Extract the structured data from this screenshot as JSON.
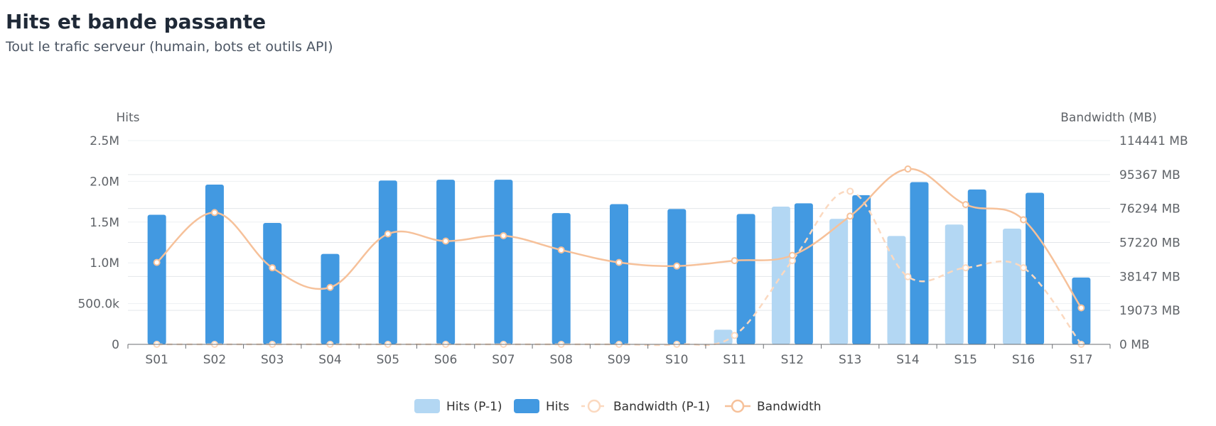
{
  "header": {
    "title": "Hits et bande passante",
    "subtitle": "Tout le trafic serveur (humain, bots et outils API)"
  },
  "colors": {
    "hits_prev": "#b3d7f3",
    "hits": "#4299e1",
    "bandwidth_prev": "#fbd9c0",
    "bandwidth": "#f6c19a",
    "grid": "#e3e6ea",
    "axis": "#6b6e72"
  },
  "chart_data": {
    "type": "bar",
    "categories": [
      "S01",
      "S02",
      "S03",
      "S04",
      "S05",
      "S06",
      "S07",
      "S08",
      "S09",
      "S10",
      "S11",
      "S12",
      "S13",
      "S14",
      "S15",
      "S16",
      "S17"
    ],
    "y_left": {
      "label": "Hits",
      "ylim": [
        0,
        2500000
      ],
      "tick_labels": [
        "0",
        "500.0k",
        "1.0M",
        "1.5M",
        "2.0M",
        "2.5M"
      ]
    },
    "y_right": {
      "label": "Bandwidth (MB)",
      "ylim": [
        0,
        114441
      ],
      "tick_labels": [
        "0 MB",
        "19073 MB",
        "38147 MB",
        "57220 MB",
        "76294 MB",
        "95367 MB",
        "114441 MB"
      ]
    },
    "series": [
      {
        "name": "Hits (P-1)",
        "type": "bar",
        "axis": "left",
        "values": [
          0,
          0,
          0,
          0,
          0,
          0,
          0,
          0,
          0,
          0,
          180000,
          1690000,
          1540000,
          1330000,
          1470000,
          1420000,
          0
        ]
      },
      {
        "name": "Hits",
        "type": "bar",
        "axis": "left",
        "values": [
          1590000,
          1960000,
          1490000,
          1110000,
          2010000,
          2020000,
          2020000,
          1610000,
          1720000,
          1660000,
          1600000,
          1730000,
          1830000,
          1990000,
          1900000,
          1860000,
          820000
        ]
      },
      {
        "name": "Bandwidth (P-1)",
        "type": "line",
        "axis": "right",
        "values": [
          0,
          0,
          0,
          0,
          0,
          0,
          0,
          0,
          0,
          0,
          5000,
          47000,
          86000,
          38000,
          43000,
          43000,
          0
        ]
      },
      {
        "name": "Bandwidth",
        "type": "line",
        "axis": "right",
        "values": [
          46000,
          74000,
          43000,
          32000,
          62000,
          58000,
          61000,
          53000,
          46000,
          44000,
          47000,
          50000,
          72000,
          98500,
          78500,
          70000,
          20500
        ]
      }
    ],
    "legend_position": "bottom-center",
    "grid": true
  }
}
